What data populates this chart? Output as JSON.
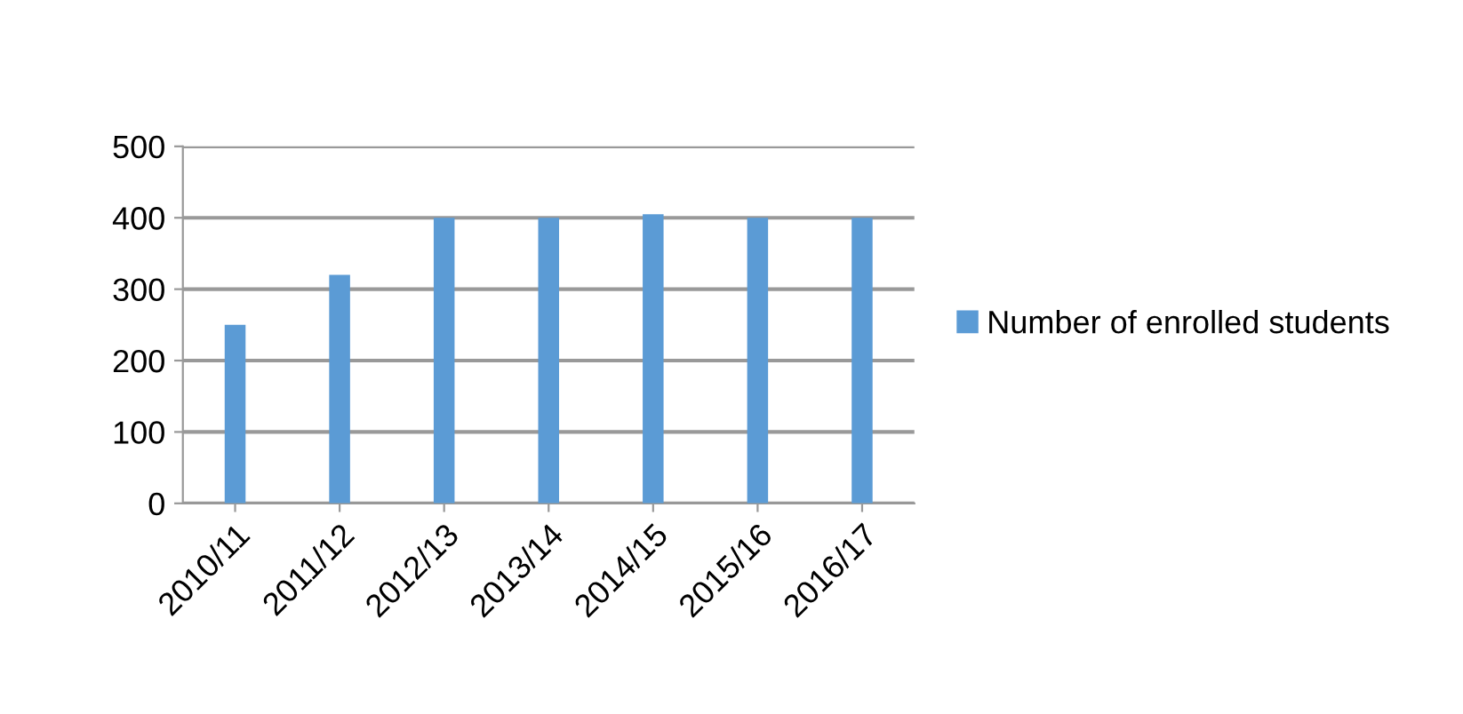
{
  "chart_data": {
    "type": "bar",
    "categories": [
      "2010/11",
      "2011/12",
      "2012/13",
      "2013/14",
      "2014/15",
      "2015/16",
      "2016/17"
    ],
    "series": [
      {
        "name": "Number of enrolled students",
        "color": "#5b9bd5",
        "values": [
          250,
          320,
          400,
          400,
          405,
          400,
          400
        ]
      }
    ],
    "ylim": [
      0,
      500
    ],
    "yticks": [
      0,
      100,
      200,
      300,
      400,
      500
    ],
    "grid": "y",
    "legend": "right"
  }
}
